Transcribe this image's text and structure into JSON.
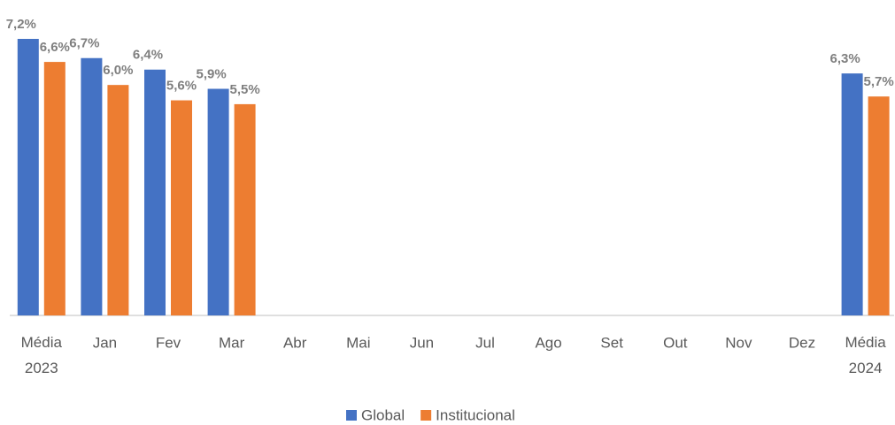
{
  "chart_data": {
    "type": "bar",
    "categories": [
      "Média 2023",
      "Jan",
      "Fev",
      "Mar",
      "Abr",
      "Mai",
      "Jun",
      "Jul",
      "Ago",
      "Set",
      "Out",
      "Nov",
      "Dez",
      "Média 2024"
    ],
    "series": [
      {
        "name": "Global",
        "color": "#4472c4",
        "values": [
          7.2,
          6.7,
          6.4,
          5.9,
          null,
          null,
          null,
          null,
          null,
          null,
          null,
          null,
          null,
          6.3
        ],
        "value_labels": [
          "7,2%",
          "6,7%",
          "6,4%",
          "5,9%",
          null,
          null,
          null,
          null,
          null,
          null,
          null,
          null,
          null,
          "6,3%"
        ]
      },
      {
        "name": "Institucional",
        "color": "#ed7d31",
        "values": [
          6.6,
          6.0,
          5.6,
          5.5,
          null,
          null,
          null,
          null,
          null,
          null,
          null,
          null,
          null,
          5.7
        ],
        "value_labels": [
          "6,6%",
          "6,0%",
          "5,6%",
          "5,5%",
          null,
          null,
          null,
          null,
          null,
          null,
          null,
          null,
          null,
          "5,7%"
        ]
      }
    ],
    "ylim": [
      0,
      7.2
    ],
    "legend": "bottom"
  }
}
